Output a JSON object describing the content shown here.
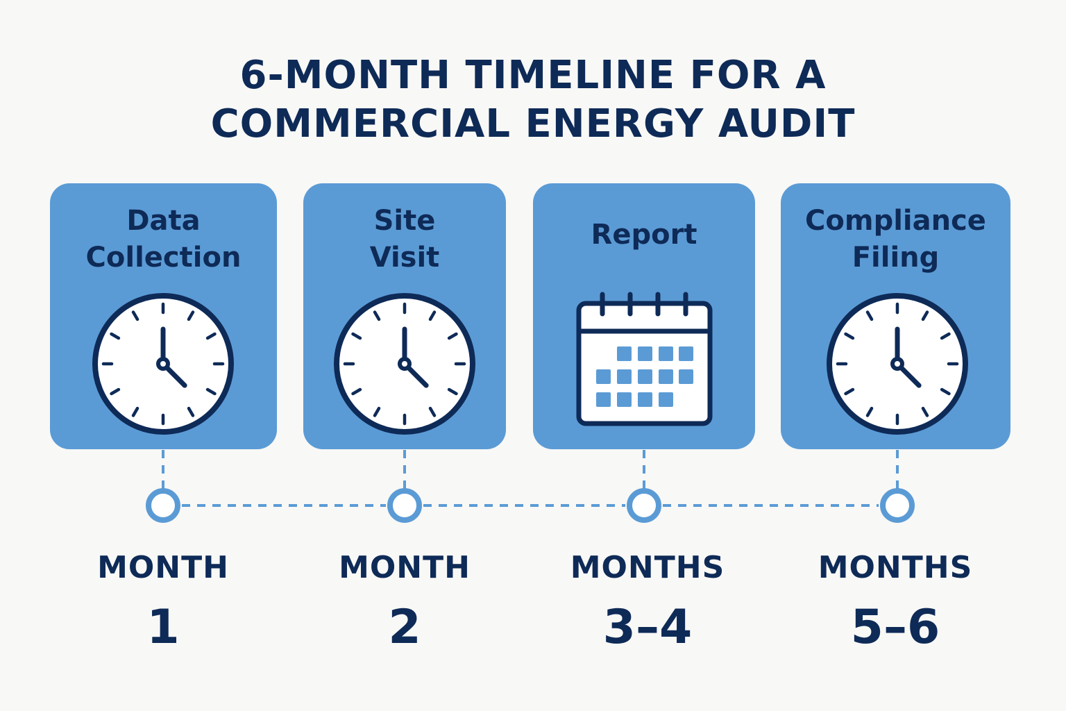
{
  "title": {
    "line1": "6-MONTH TIMELINE FOR A",
    "line2": "COMMERCIAL ENERGY AUDIT"
  },
  "colors": {
    "card": "#5b9bd5",
    "text": "#0e2a57",
    "background": "#f8f8f6",
    "timeline": "#5b9bd5"
  },
  "stages": [
    {
      "label_lines": [
        "Data",
        "Collection"
      ],
      "icon": "clock-icon",
      "period_word": "MONTH",
      "period_value": "1"
    },
    {
      "label_lines": [
        "Site",
        "Visit"
      ],
      "icon": "clock-icon",
      "period_word": "MONTH",
      "period_value": "2"
    },
    {
      "label_lines": [
        "Report"
      ],
      "icon": "calendar-icon",
      "period_word": "MONTHS",
      "period_value": "3–4"
    },
    {
      "label_lines": [
        "Compliance",
        "Filing"
      ],
      "icon": "clock-icon",
      "period_word": "MONTHS",
      "period_value": "5–6"
    }
  ]
}
